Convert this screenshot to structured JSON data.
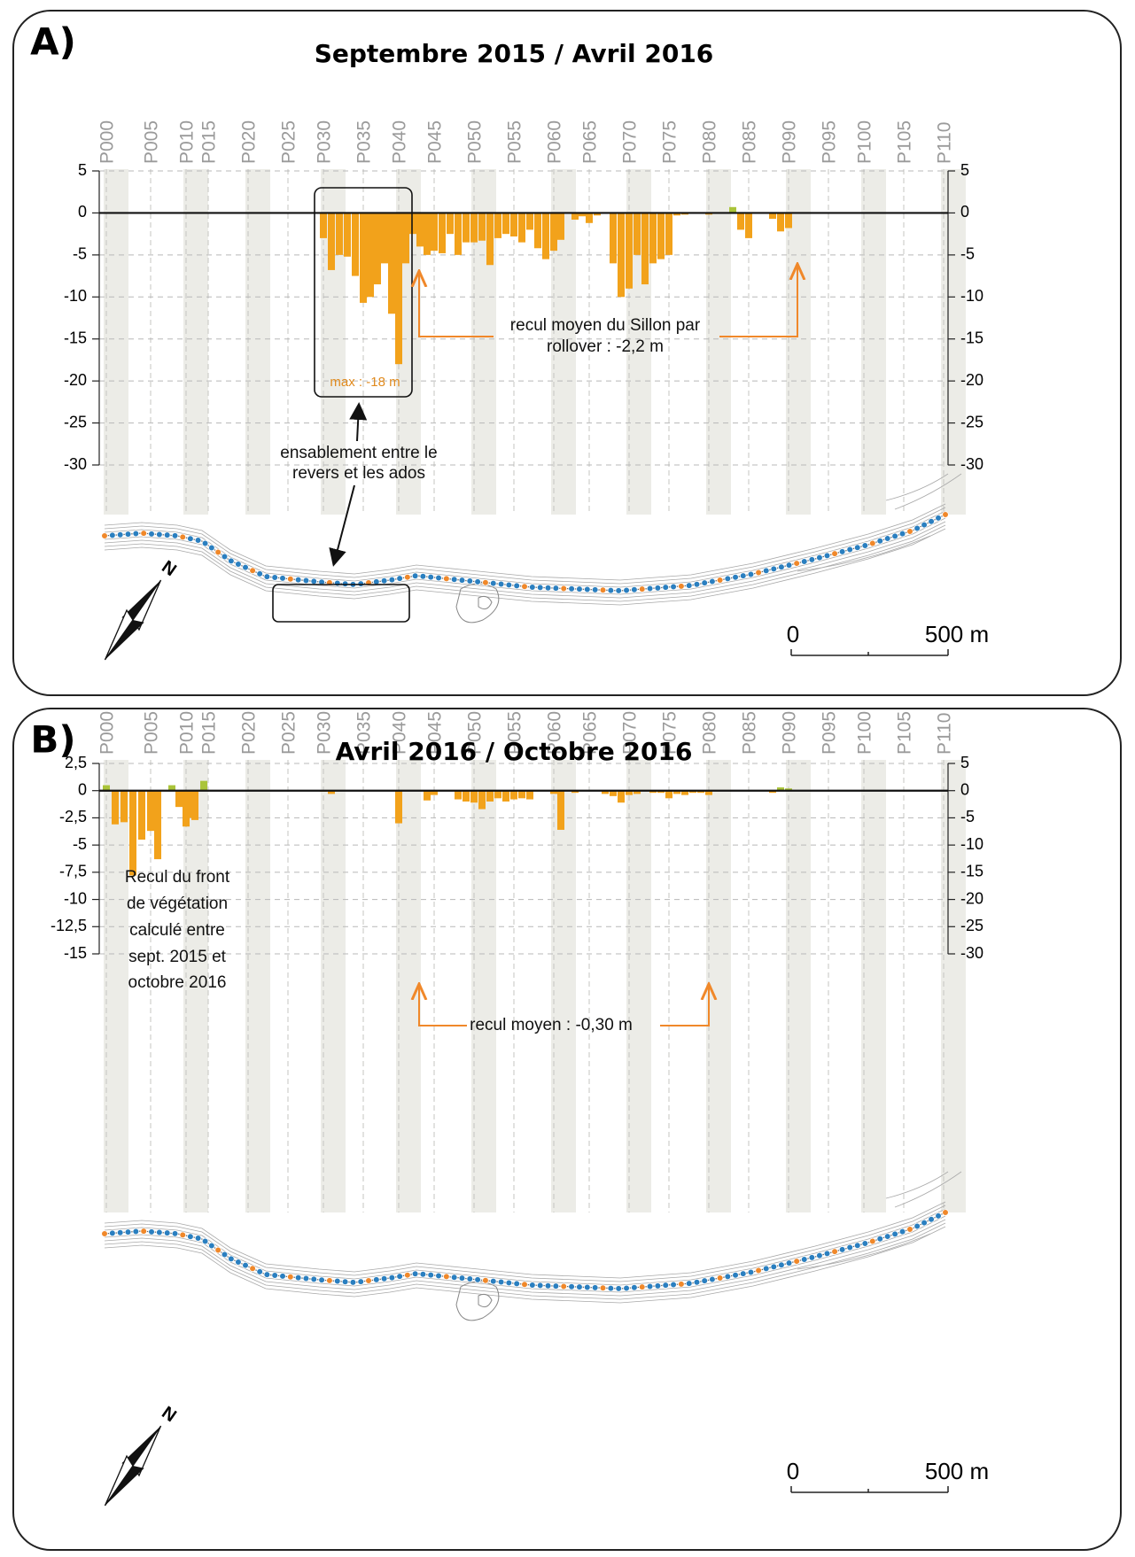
{
  "chart_data": [
    {
      "type": "bar",
      "panel": "A)",
      "title": "Septembre 2015 / Avril 2016",
      "categories": [
        "P000",
        null,
        null,
        null,
        null,
        "P005",
        null,
        null,
        null,
        null,
        "P010",
        null,
        null,
        null,
        null,
        "P015",
        null,
        null,
        null,
        null,
        "P020",
        null,
        null,
        null,
        null,
        "P025",
        null,
        null,
        null,
        null,
        "P030",
        null,
        null,
        null,
        null,
        "P035",
        null,
        null,
        null,
        null,
        "P040",
        null,
        null,
        null,
        null,
        "P045",
        null,
        null,
        null,
        null,
        "P050",
        null,
        null,
        null,
        null,
        "P055",
        null,
        null,
        null,
        null,
        "P060",
        null,
        null,
        null,
        null,
        "P065",
        null,
        null,
        null,
        null,
        "P070",
        null,
        null,
        null,
        null,
        "P075",
        null,
        null,
        null,
        null,
        "P080",
        null,
        null,
        null,
        null,
        "P085",
        null,
        null,
        null,
        null,
        "P090",
        null,
        null,
        null,
        null,
        "P095",
        null,
        null,
        null,
        null,
        "P100",
        null,
        null,
        null,
        null,
        "P105",
        null,
        null,
        null,
        null,
        "P110"
      ],
      "series": [
        {
          "color": "#f2a21b",
          "positive_color": "#aac43a",
          "values": [
            0,
            0,
            0,
            0,
            0,
            0,
            0,
            0,
            0,
            0,
            0,
            0,
            0,
            0,
            0,
            0,
            0,
            0,
            0,
            0,
            0,
            0,
            0,
            0,
            0,
            0,
            0,
            0,
            0,
            0,
            -3,
            -6.8,
            -5,
            -5.2,
            -7.5,
            -10.7,
            -10,
            -8.5,
            -6,
            -12,
            -18,
            -6,
            -2.5,
            -4,
            -5,
            -4.5,
            -4.8,
            -2.5,
            -5,
            -3.5,
            -3.5,
            -3.3,
            -6.2,
            -3,
            -2.5,
            -2.8,
            -3.5,
            -2,
            -4.2,
            -5.5,
            -4.5,
            -3.2,
            0,
            -0.8,
            -0.4,
            -1.2,
            -0.3,
            0,
            -6,
            -10,
            -9,
            -5,
            -8.5,
            -6,
            -5.5,
            -5,
            -0.3,
            -0.2,
            0.1,
            -0.1,
            -0.2,
            0,
            0,
            0.7,
            -2,
            -3,
            0,
            0,
            -0.7,
            -2.2,
            -1.8,
            0,
            0,
            0,
            0,
            0,
            0,
            0,
            0,
            0,
            0,
            0,
            0,
            0,
            0,
            0,
            0,
            0,
            0,
            0,
            0
          ]
        }
      ],
      "ylim": [
        -30,
        5
      ],
      "yticks": [
        5,
        0,
        -5,
        -10,
        -15,
        -20,
        -25,
        -30
      ],
      "y2lim": [
        -30,
        5
      ],
      "y2ticks": [
        5,
        0,
        -5,
        -10,
        -15,
        -20,
        -25,
        -30
      ],
      "grid": true,
      "annotations": [
        {
          "lines": [
            "max : -18 m"
          ]
        },
        {
          "lines": [
            "ensablement entre le",
            "revers et les ados"
          ]
        },
        {
          "lines": [
            "recul moyen du Sillon par",
            "rollover : -2,2 m"
          ]
        }
      ],
      "scale_labels": [
        "0",
        "500 m"
      ],
      "north": "N"
    },
    {
      "type": "bar",
      "panel": "B)",
      "title": "Avril 2016 / Octobre 2016",
      "categories": [
        "P000",
        null,
        null,
        null,
        null,
        "P005",
        null,
        null,
        null,
        null,
        "P010",
        null,
        null,
        null,
        null,
        "P015",
        null,
        null,
        null,
        null,
        "P020",
        null,
        null,
        null,
        null,
        "P025",
        null,
        null,
        null,
        null,
        "P030",
        null,
        null,
        null,
        null,
        "P035",
        null,
        null,
        null,
        null,
        "P040",
        null,
        null,
        null,
        null,
        "P045",
        null,
        null,
        null,
        null,
        "P050",
        null,
        null,
        null,
        null,
        "P055",
        null,
        null,
        null,
        null,
        "P060",
        null,
        null,
        null,
        null,
        "P065",
        null,
        null,
        null,
        null,
        "P070",
        null,
        null,
        null,
        null,
        "P075",
        null,
        null,
        null,
        null,
        "P080",
        null,
        null,
        null,
        null,
        "P085",
        null,
        null,
        null,
        null,
        "P090",
        null,
        null,
        null,
        null,
        "P095",
        null,
        null,
        null,
        null,
        "P100",
        null,
        null,
        null,
        null,
        "P105",
        null,
        null,
        null,
        null,
        "P110"
      ],
      "series": [
        {
          "color": "#f2a21b",
          "positive_color": "#aac43a",
          "values": [
            0.5,
            -3.1,
            -2.9,
            -7.8,
            -4.5,
            -3.7,
            -6.3,
            0,
            0.5,
            -1.5,
            -3.3,
            -2.5,
            -2.7,
            0,
            0.9,
            0,
            0,
            0,
            0,
            0,
            0,
            0,
            0,
            0,
            0,
            0,
            0,
            0,
            0,
            0,
            -0.1,
            -0.3,
            0,
            0,
            0,
            0,
            0,
            0,
            0,
            0,
            -3,
            0,
            0,
            0,
            -0.9,
            -0.4,
            0,
            0,
            -0.8,
            -1,
            -1.1,
            -1.7,
            -1,
            -0.7,
            -1,
            -0.8,
            -0.7,
            -0.8,
            0,
            0,
            -0.3,
            -3.6,
            0,
            -0.2,
            0,
            0,
            0,
            -0.3,
            -0.5,
            -1.1,
            -0.4,
            -0.3,
            0,
            -0.2,
            -0.2,
            -0.7,
            -0.3,
            -0.4,
            -0.2,
            -0.2,
            -0.4,
            0,
            0,
            0,
            0,
            0,
            0,
            0,
            -0.2,
            0.3,
            0.2,
            0,
            0,
            0,
            0,
            0,
            0,
            0,
            0,
            0,
            0,
            0,
            0,
            0,
            0,
            0,
            0,
            0,
            0,
            0,
            0
          ]
        }
      ],
      "ylim": [
        -15,
        2.5
      ],
      "yticks": [
        {
          "value": 2.5,
          "label": "2,5"
        },
        0,
        {
          "value": -2.5,
          "label": "-2,5"
        },
        -5,
        {
          "value": -7.5,
          "label": "-7,5"
        },
        -10,
        {
          "value": -12.5,
          "label": "-12,5"
        },
        -15
      ],
      "y2lim": [
        -30,
        5
      ],
      "y2ticks": [
        5,
        0,
        -5,
        -10,
        -15,
        -20,
        -25,
        -30
      ],
      "grid": true,
      "annotations": [
        {
          "lines": [
            "recul moyen : -0,30 m"
          ]
        },
        {
          "lines": [
            "Recul du front",
            "de végétation",
            "calculé entre",
            "sept. 2015 et",
            "octobre 2016"
          ]
        }
      ],
      "scale_labels": [
        "0",
        "500 m"
      ],
      "north": "N"
    }
  ]
}
